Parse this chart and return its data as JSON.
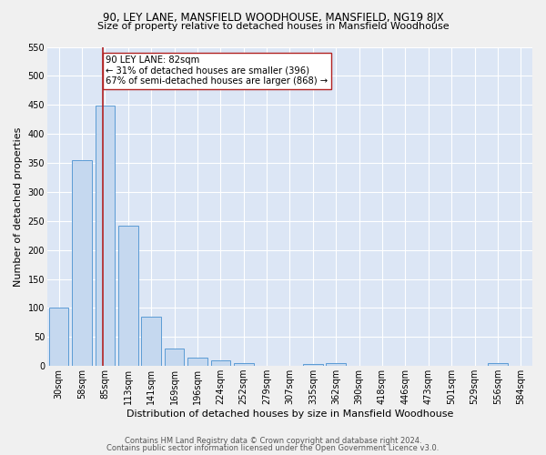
{
  "title1": "90, LEY LANE, MANSFIELD WOODHOUSE, MANSFIELD, NG19 8JX",
  "title2": "Size of property relative to detached houses in Mansfield Woodhouse",
  "xlabel": "Distribution of detached houses by size in Mansfield Woodhouse",
  "ylabel": "Number of detached properties",
  "footer1": "Contains HM Land Registry data © Crown copyright and database right 2024.",
  "footer2": "Contains public sector information licensed under the Open Government Licence v3.0.",
  "bins": [
    "30sqm",
    "58sqm",
    "85sqm",
    "113sqm",
    "141sqm",
    "169sqm",
    "196sqm",
    "224sqm",
    "252sqm",
    "279sqm",
    "307sqm",
    "335sqm",
    "362sqm",
    "390sqm",
    "418sqm",
    "446sqm",
    "473sqm",
    "501sqm",
    "529sqm",
    "556sqm",
    "584sqm"
  ],
  "values": [
    100,
    355,
    449,
    242,
    85,
    30,
    15,
    9,
    5,
    0,
    0,
    4,
    5,
    0,
    0,
    0,
    0,
    0,
    0,
    5,
    0
  ],
  "bar_color": "#c5d8ef",
  "bar_edge_color": "#5b9bd5",
  "fig_bg_color": "#f0f0f0",
  "ax_bg_color": "#dce6f5",
  "grid_color": "#ffffff",
  "vline_color": "#b22222",
  "annotation_text": "90 LEY LANE: 82sqm\n← 31% of detached houses are smaller (396)\n67% of semi-detached houses are larger (868) →",
  "annotation_box_facecolor": "#ffffff",
  "annotation_box_edgecolor": "#b22222",
  "ylim": [
    0,
    550
  ],
  "yticks": [
    0,
    50,
    100,
    150,
    200,
    250,
    300,
    350,
    400,
    450,
    500,
    550
  ],
  "title1_fontsize": 8.5,
  "title2_fontsize": 8.0,
  "xlabel_fontsize": 8.0,
  "ylabel_fontsize": 8.0,
  "tick_fontsize": 7.0,
  "footer_fontsize": 6.0
}
